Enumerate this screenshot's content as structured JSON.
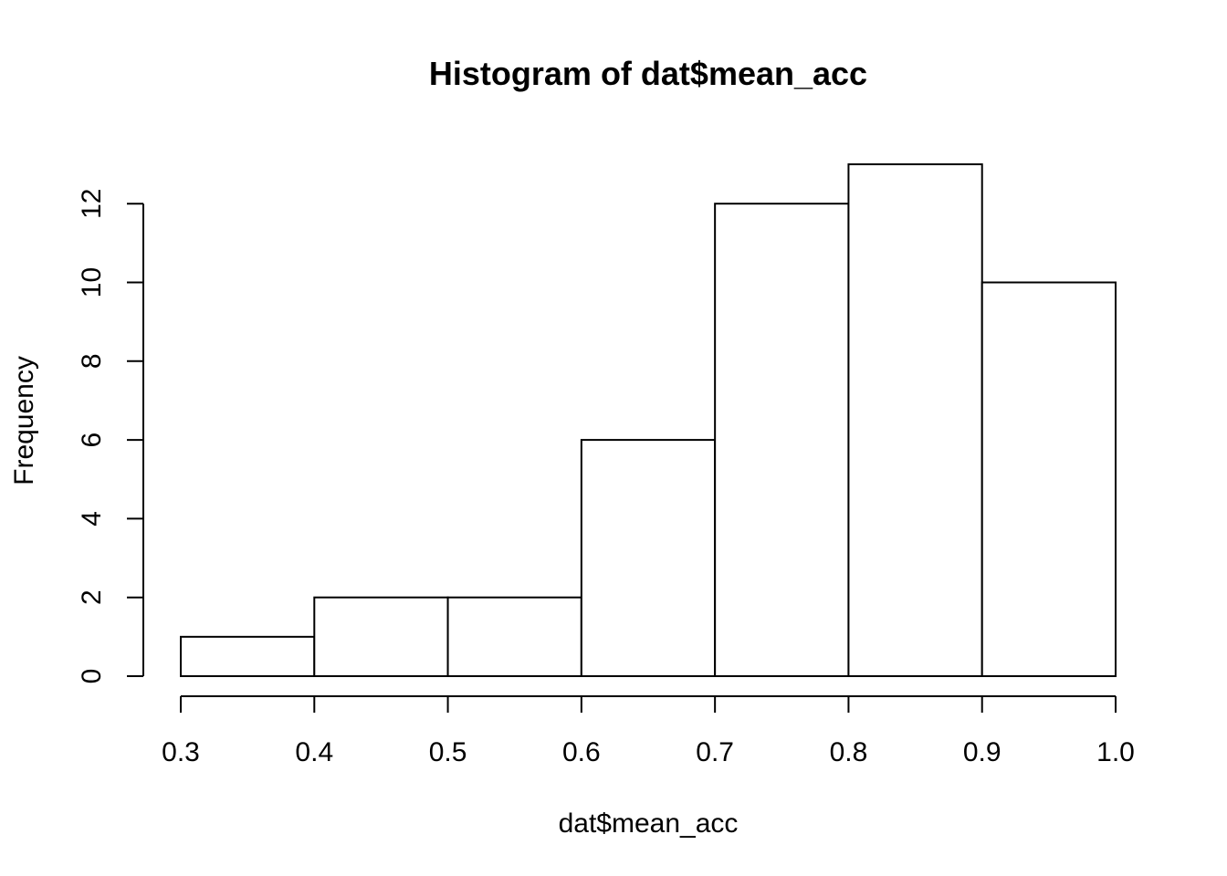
{
  "chart_data": {
    "type": "bar",
    "title": "Histogram of dat$mean_acc",
    "xlabel": "dat$mean_acc",
    "ylabel": "Frequency",
    "bins": [
      {
        "start": 0.3,
        "end": 0.4,
        "count": 1
      },
      {
        "start": 0.4,
        "end": 0.5,
        "count": 2
      },
      {
        "start": 0.5,
        "end": 0.6,
        "count": 2
      },
      {
        "start": 0.6,
        "end": 0.7,
        "count": 6
      },
      {
        "start": 0.7,
        "end": 0.8,
        "count": 12
      },
      {
        "start": 0.8,
        "end": 0.9,
        "count": 13
      },
      {
        "start": 0.9,
        "end": 1.0,
        "count": 10
      }
    ],
    "xlim": [
      0.3,
      1.0
    ],
    "ylim": [
      0,
      13
    ],
    "x_ticks": [
      "0.3",
      "0.4",
      "0.5",
      "0.6",
      "0.7",
      "0.8",
      "0.9",
      "1.0"
    ],
    "y_ticks": [
      "0",
      "2",
      "4",
      "6",
      "8",
      "10",
      "12"
    ],
    "bar_fill": "#ffffff",
    "bar_stroke": "#000000",
    "grid": false,
    "legend": "none"
  }
}
